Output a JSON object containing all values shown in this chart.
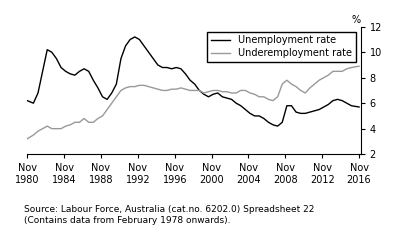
{
  "title": "",
  "ylabel": "%",
  "ylim": [
    2,
    12
  ],
  "yticks": [
    2,
    4,
    6,
    8,
    10,
    12
  ],
  "xlim": [
    1980.83,
    2017.0
  ],
  "xtick_years": [
    1980,
    1984,
    1988,
    1992,
    1996,
    2000,
    2004,
    2008,
    2012,
    2016
  ],
  "source_text": "Source: Labour Force, Australia (cat.no. 6202.0) Spreadsheet 22\n(Contains data from February 1978 onwards).",
  "unemployment_color": "#000000",
  "underemployment_color": "#999999",
  "legend_labels": [
    "Unemployment rate",
    "Underemployment rate"
  ],
  "unemployment_data": [
    [
      1980.83,
      6.2
    ],
    [
      1981.5,
      6.0
    ],
    [
      1982.0,
      6.8
    ],
    [
      1982.5,
      8.5
    ],
    [
      1983.0,
      10.2
    ],
    [
      1983.5,
      10.0
    ],
    [
      1984.0,
      9.5
    ],
    [
      1984.5,
      8.8
    ],
    [
      1985.0,
      8.5
    ],
    [
      1985.5,
      8.3
    ],
    [
      1986.0,
      8.2
    ],
    [
      1986.5,
      8.5
    ],
    [
      1987.0,
      8.7
    ],
    [
      1987.5,
      8.5
    ],
    [
      1988.0,
      7.8
    ],
    [
      1988.5,
      7.2
    ],
    [
      1989.0,
      6.5
    ],
    [
      1989.5,
      6.3
    ],
    [
      1990.0,
      6.8
    ],
    [
      1990.5,
      7.5
    ],
    [
      1991.0,
      9.5
    ],
    [
      1991.5,
      10.5
    ],
    [
      1992.0,
      11.0
    ],
    [
      1992.5,
      11.2
    ],
    [
      1993.0,
      11.0
    ],
    [
      1993.5,
      10.5
    ],
    [
      1994.0,
      10.0
    ],
    [
      1994.5,
      9.5
    ],
    [
      1995.0,
      9.0
    ],
    [
      1995.5,
      8.8
    ],
    [
      1996.0,
      8.8
    ],
    [
      1996.5,
      8.7
    ],
    [
      1997.0,
      8.8
    ],
    [
      1997.5,
      8.7
    ],
    [
      1998.0,
      8.3
    ],
    [
      1998.5,
      7.8
    ],
    [
      1999.0,
      7.5
    ],
    [
      1999.5,
      7.0
    ],
    [
      2000.0,
      6.7
    ],
    [
      2000.5,
      6.5
    ],
    [
      2001.0,
      6.7
    ],
    [
      2001.5,
      6.8
    ],
    [
      2002.0,
      6.5
    ],
    [
      2002.5,
      6.4
    ],
    [
      2003.0,
      6.3
    ],
    [
      2003.5,
      6.0
    ],
    [
      2004.0,
      5.8
    ],
    [
      2004.5,
      5.5
    ],
    [
      2005.0,
      5.2
    ],
    [
      2005.5,
      5.0
    ],
    [
      2006.0,
      5.0
    ],
    [
      2006.5,
      4.8
    ],
    [
      2007.0,
      4.5
    ],
    [
      2007.5,
      4.3
    ],
    [
      2008.0,
      4.2
    ],
    [
      2008.5,
      4.5
    ],
    [
      2009.0,
      5.8
    ],
    [
      2009.5,
      5.8
    ],
    [
      2010.0,
      5.3
    ],
    [
      2010.5,
      5.2
    ],
    [
      2011.0,
      5.2
    ],
    [
      2011.5,
      5.3
    ],
    [
      2012.0,
      5.4
    ],
    [
      2012.5,
      5.5
    ],
    [
      2013.0,
      5.7
    ],
    [
      2013.5,
      5.9
    ],
    [
      2014.0,
      6.2
    ],
    [
      2014.5,
      6.3
    ],
    [
      2015.0,
      6.2
    ],
    [
      2015.5,
      6.0
    ],
    [
      2016.0,
      5.8
    ],
    [
      2016.83,
      5.7
    ]
  ],
  "underemployment_data": [
    [
      1980.83,
      3.2
    ],
    [
      1981.5,
      3.5
    ],
    [
      1982.0,
      3.8
    ],
    [
      1982.5,
      4.0
    ],
    [
      1983.0,
      4.2
    ],
    [
      1983.5,
      4.0
    ],
    [
      1984.0,
      4.0
    ],
    [
      1984.5,
      4.0
    ],
    [
      1985.0,
      4.2
    ],
    [
      1985.5,
      4.3
    ],
    [
      1986.0,
      4.5
    ],
    [
      1986.5,
      4.5
    ],
    [
      1987.0,
      4.8
    ],
    [
      1987.5,
      4.5
    ],
    [
      1988.0,
      4.5
    ],
    [
      1988.5,
      4.8
    ],
    [
      1989.0,
      5.0
    ],
    [
      1989.5,
      5.5
    ],
    [
      1990.0,
      6.0
    ],
    [
      1990.5,
      6.5
    ],
    [
      1991.0,
      7.0
    ],
    [
      1991.5,
      7.2
    ],
    [
      1992.0,
      7.3
    ],
    [
      1992.5,
      7.3
    ],
    [
      1993.0,
      7.4
    ],
    [
      1993.5,
      7.4
    ],
    [
      1994.0,
      7.3
    ],
    [
      1994.5,
      7.2
    ],
    [
      1995.0,
      7.1
    ],
    [
      1995.5,
      7.0
    ],
    [
      1996.0,
      7.0
    ],
    [
      1996.5,
      7.1
    ],
    [
      1997.0,
      7.1
    ],
    [
      1997.5,
      7.2
    ],
    [
      1998.0,
      7.1
    ],
    [
      1998.5,
      7.0
    ],
    [
      1999.0,
      7.0
    ],
    [
      1999.5,
      7.0
    ],
    [
      2000.0,
      6.8
    ],
    [
      2000.5,
      6.9
    ],
    [
      2001.0,
      7.0
    ],
    [
      2001.5,
      7.0
    ],
    [
      2002.0,
      6.9
    ],
    [
      2002.5,
      6.9
    ],
    [
      2003.0,
      6.8
    ],
    [
      2003.5,
      6.8
    ],
    [
      2004.0,
      7.0
    ],
    [
      2004.5,
      7.0
    ],
    [
      2005.0,
      6.8
    ],
    [
      2005.5,
      6.7
    ],
    [
      2006.0,
      6.5
    ],
    [
      2006.5,
      6.5
    ],
    [
      2007.0,
      6.3
    ],
    [
      2007.5,
      6.2
    ],
    [
      2008.0,
      6.5
    ],
    [
      2008.5,
      7.5
    ],
    [
      2009.0,
      7.8
    ],
    [
      2009.5,
      7.5
    ],
    [
      2010.0,
      7.3
    ],
    [
      2010.5,
      7.0
    ],
    [
      2011.0,
      6.8
    ],
    [
      2011.5,
      7.2
    ],
    [
      2012.0,
      7.5
    ],
    [
      2012.5,
      7.8
    ],
    [
      2013.0,
      8.0
    ],
    [
      2013.5,
      8.2
    ],
    [
      2014.0,
      8.5
    ],
    [
      2014.5,
      8.5
    ],
    [
      2015.0,
      8.5
    ],
    [
      2015.5,
      8.7
    ],
    [
      2016.0,
      8.8
    ],
    [
      2016.83,
      8.9
    ]
  ],
  "background_color": "#ffffff",
  "tick_fontsize": 7,
  "legend_fontsize": 7,
  "source_fontsize": 6.5
}
